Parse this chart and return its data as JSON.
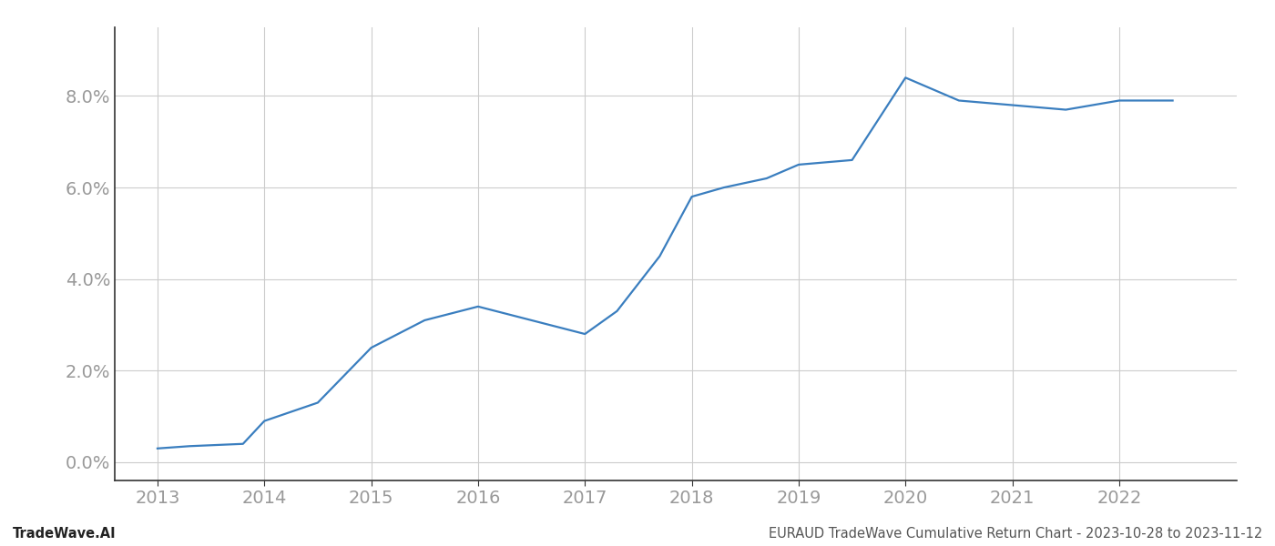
{
  "x": [
    2013.0,
    2013.3,
    2013.8,
    2014.0,
    2014.5,
    2015.0,
    2015.5,
    2016.0,
    2016.5,
    2017.0,
    2017.3,
    2017.7,
    2018.0,
    2018.3,
    2018.7,
    2019.0,
    2019.5,
    2020.0,
    2020.5,
    2021.0,
    2021.5,
    2022.0,
    2022.5
  ],
  "y": [
    0.003,
    0.0035,
    0.004,
    0.009,
    0.013,
    0.025,
    0.031,
    0.034,
    0.031,
    0.028,
    0.033,
    0.045,
    0.058,
    0.06,
    0.062,
    0.065,
    0.066,
    0.084,
    0.079,
    0.078,
    0.077,
    0.079,
    0.079
  ],
  "line_color": "#3a7ebf",
  "line_width": 1.6,
  "background_color": "#ffffff",
  "grid_color": "#cccccc",
  "footer_left": "TradeWave.AI",
  "footer_right": "EURAUD TradeWave Cumulative Return Chart - 2023-10-28 to 2023-11-12",
  "yticks": [
    0.0,
    0.02,
    0.04,
    0.06,
    0.08
  ],
  "ytick_labels": [
    "0.0%",
    "2.0%",
    "4.0%",
    "6.0%",
    "8.0%"
  ],
  "xlim": [
    2012.6,
    2023.1
  ],
  "ylim": [
    -0.004,
    0.095
  ],
  "xticks": [
    2013,
    2014,
    2015,
    2016,
    2017,
    2018,
    2019,
    2020,
    2021,
    2022
  ],
  "tick_label_color": "#999999",
  "tick_fontsize": 14,
  "footer_fontsize": 10.5,
  "left_spine_color": "#333333",
  "bottom_spine_color": "#333333"
}
